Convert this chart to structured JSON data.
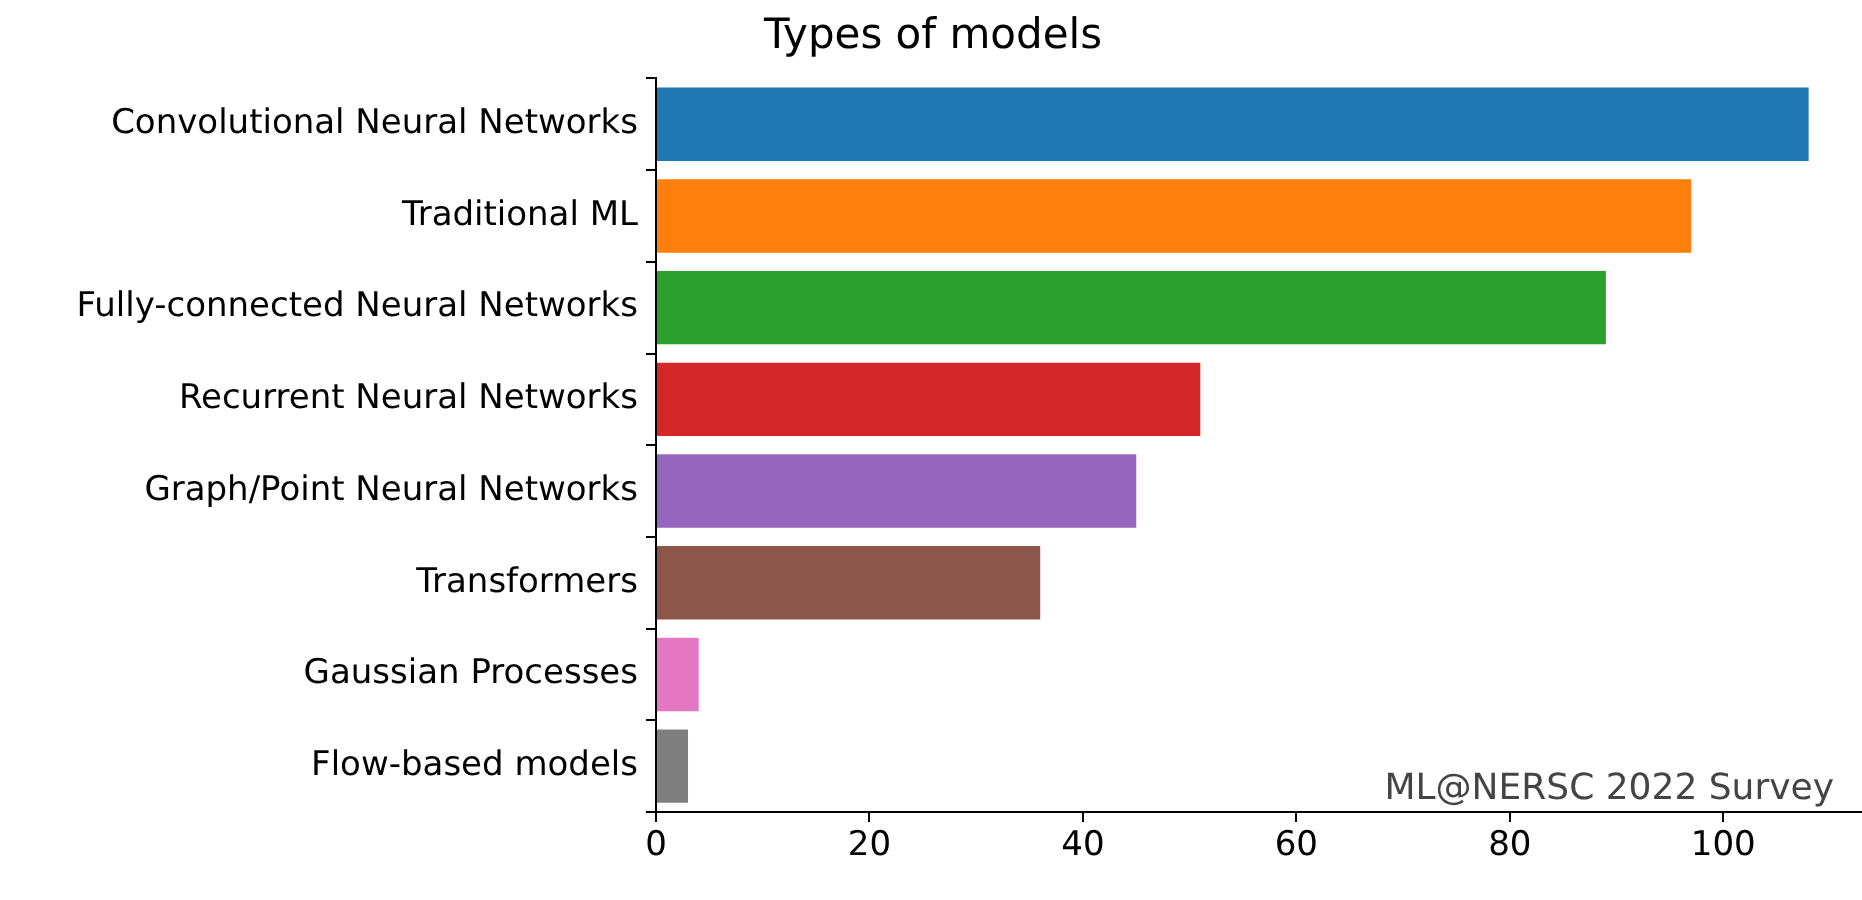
{
  "chart_data": {
    "type": "bar",
    "orientation": "horizontal",
    "title": "Types of models",
    "categories": [
      "Convolutional Neural Networks",
      "Traditional ML",
      "Fully-connected Neural Networks",
      "Recurrent Neural Networks",
      "Graph/Point Neural Networks",
      "Transformers",
      "Gaussian Processes",
      "Flow-based models"
    ],
    "values": [
      108,
      97,
      89,
      51,
      45,
      36,
      4,
      3
    ],
    "colors": [
      "#1f77b4",
      "#ff7f0e",
      "#2ca02c",
      "#d62728",
      "#9467bd",
      "#8c564b",
      "#e377c2",
      "#7f7f7f"
    ],
    "xlim": [
      0,
      113
    ],
    "xticks": [
      0,
      20,
      40,
      60,
      80,
      100
    ],
    "grid": false,
    "legend": false,
    "annotations": [
      "ML@NERSC 2022 Survey"
    ]
  }
}
